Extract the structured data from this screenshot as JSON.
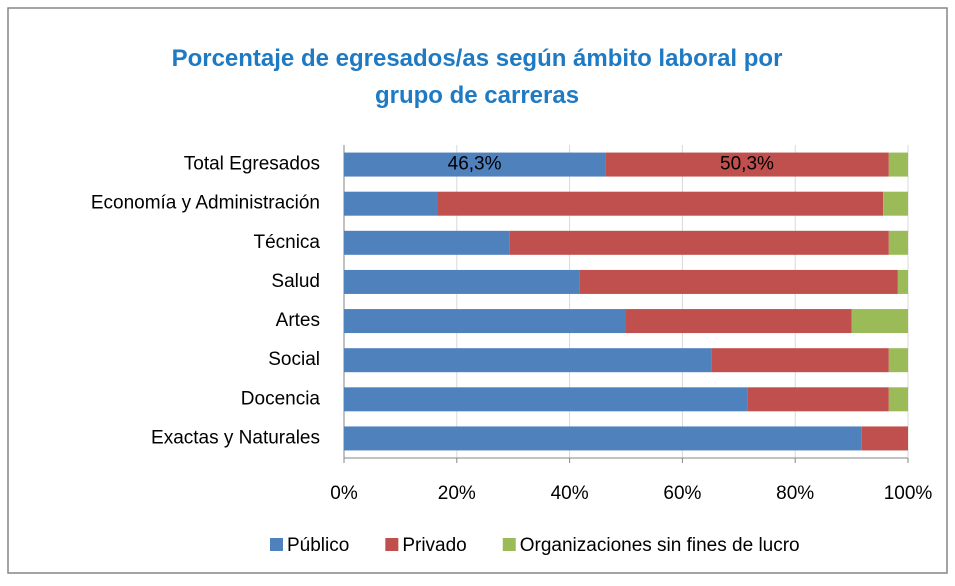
{
  "chart_data": {
    "type": "stacked_bar_horizontal",
    "title": "Porcentaje de egresados/as según ámbito laboral por grupo de carreras",
    "categories": [
      "Total Egresados",
      "Economía y Administración",
      "Técnica",
      "Salud",
      "Artes",
      "Social",
      "Docencia",
      "Exactas y Naturales"
    ],
    "series": [
      {
        "name": "Público",
        "color": "#4f81bd",
        "values": [
          46.3,
          16.5,
          29.3,
          41.7,
          50,
          65.1,
          71.5,
          91.8
        ],
        "value_labels": [
          "46,3%",
          null,
          null,
          null,
          null,
          null,
          null,
          null
        ]
      },
      {
        "name": "Privado",
        "color": "#c0504d",
        "values": [
          50.3,
          79.1,
          67.3,
          56.5,
          40,
          31.5,
          25.1,
          8.2
        ],
        "value_labels": [
          "50,3%",
          null,
          null,
          null,
          null,
          null,
          null,
          null
        ]
      },
      {
        "name": "Organizaciones sin fines de lucro",
        "color": "#9bbb59",
        "values": [
          3.4,
          4.4,
          3.4,
          1.8,
          10,
          3.4,
          3.4,
          0
        ]
      }
    ],
    "xlim": [
      0,
      100
    ],
    "xticks": [
      {
        "value": 0,
        "label": "0%"
      },
      {
        "value": 20,
        "label": "20%"
      },
      {
        "value": 40,
        "label": "40%"
      },
      {
        "value": 60,
        "label": "60%"
      },
      {
        "value": 80,
        "label": "80%"
      },
      {
        "value": 100,
        "label": "100%"
      }
    ],
    "grid": true,
    "legend": "bottom"
  }
}
